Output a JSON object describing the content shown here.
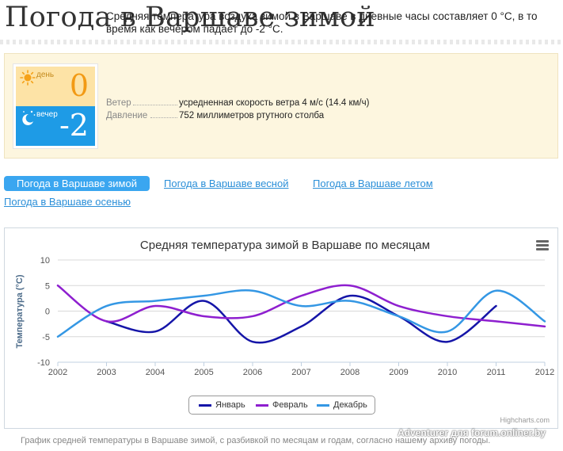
{
  "page": {
    "title": "Погода в Варшаве зимой"
  },
  "info": {
    "day_label": "день",
    "day_value": "0",
    "night_label": "вечер",
    "night_value": "-2",
    "summary": "Средняя температура воздуха зимой в Варшаве в дневные часы составляет 0 °С, в то время как вечером падает до -2 °С.",
    "wind_key": "Ветер",
    "wind_value": "усредненная скорость ветра 4 м/с (14.4 км/ч)",
    "pressure_key": "Давление",
    "pressure_value": "752 миллиметров ртутного столба",
    "colors": {
      "day_bg": "#fde3a6",
      "day_text": "#f29a14",
      "night_bg": "#1e9be6"
    }
  },
  "tabs": [
    {
      "label": "Погода в Варшаве зимой",
      "active": true
    },
    {
      "label": "Погода в Варшаве весной",
      "active": false
    },
    {
      "label": "Погода в Варшаве летом",
      "active": false
    },
    {
      "label": "Погода в Варшаве осенью",
      "active": false
    }
  ],
  "chart_data": {
    "type": "line",
    "title": "Средняя температура зимой в Варшаве по месяцам",
    "ylabel": "Температура (°C)",
    "xlabel": "",
    "x": [
      2002,
      2003,
      2004,
      2005,
      2006,
      2007,
      2008,
      2009,
      2010,
      2011,
      2012
    ],
    "ylim": [
      -10,
      10
    ],
    "yticks": [
      -10,
      -5,
      0,
      5,
      10
    ],
    "grid": true,
    "legend_position": "bottom",
    "series": [
      {
        "name": "Январь",
        "color": "#1515a8",
        "values": [
          null,
          -2,
          -4,
          2,
          -6,
          -3,
          3,
          -1,
          -6,
          1,
          null
        ]
      },
      {
        "name": "Февраль",
        "color": "#8e1fcf",
        "values": [
          5,
          -2,
          1,
          -1,
          -1,
          3,
          5,
          1,
          -1,
          -2,
          -3
        ]
      },
      {
        "name": "Декабрь",
        "color": "#3497e4",
        "values": [
          -5,
          1,
          2,
          3,
          4,
          1,
          2,
          -1,
          -4,
          4,
          -2
        ]
      }
    ],
    "menu_icon": "hamburger-menu-icon",
    "credits": "Highcharts.com"
  },
  "caption": "График средней температуры в Варшаве зимой, с разбивкой по месяцам и годам, согласно нашему архиву погоды.",
  "watermark": "Adventurer для forum.onliner.by"
}
